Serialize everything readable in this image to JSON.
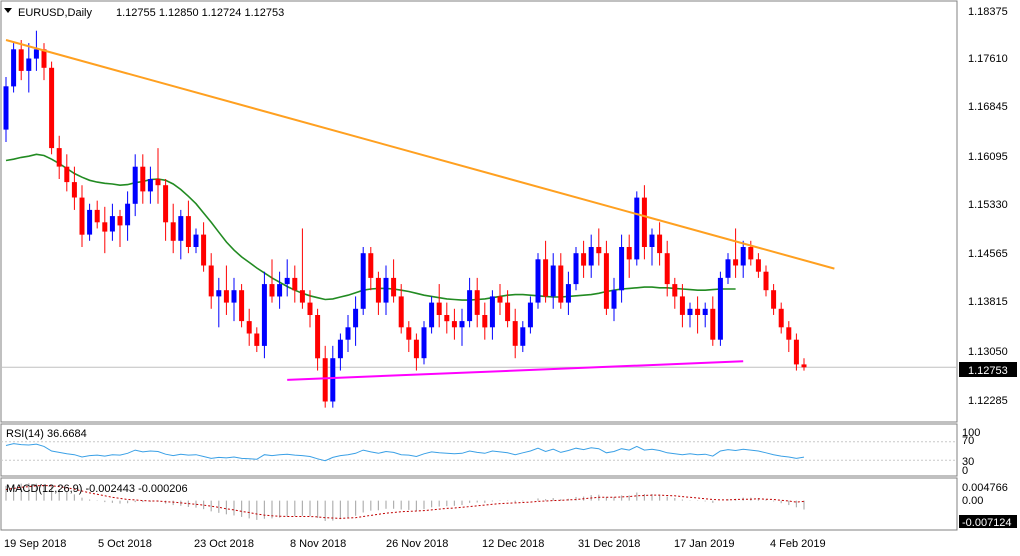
{
  "header": {
    "arrow_icon": "triangle-down-icon",
    "symbol": "EURUSD,Daily",
    "ohlc": "1.12755 1.12850 1.12724 1.12753"
  },
  "price_axis": {
    "ticks": [
      "1.18375",
      "1.17610",
      "1.16845",
      "1.16095",
      "1.15330",
      "1.14565",
      "1.13815",
      "1.13050",
      "1.12285"
    ],
    "last_price_label": "1.12753"
  },
  "rsi": {
    "label": "RSI(14) 36.6684",
    "ticks": [
      "100",
      "70",
      "30",
      "0"
    ]
  },
  "macd": {
    "label": "MACD(12,26,9) -0.002443 -0.000206",
    "ticks": [
      "0.004766",
      "0.00",
      "-0.007124"
    ]
  },
  "date_axis": [
    "19 Sep 2018",
    "5 Oct 2018",
    "23 Oct 2018",
    "8 Nov 2018",
    "26 Nov 2018",
    "12 Dec 2018",
    "31 Dec 2018",
    "17 Jan 2019",
    "4 Feb 2019"
  ],
  "colors": {
    "bull": "#0000ff",
    "bear": "#ff0000",
    "ma": "#228b22",
    "trend_down": "#ffa020",
    "trend_up": "#ff00ff",
    "rsi": "#3aa0e6",
    "macd": "#b0b0b0",
    "signal": "#c00000",
    "frame": "#808080"
  },
  "chart_data": {
    "type": "candlestick",
    "symbol": "EURUSD",
    "timeframe": "Daily",
    "last_ohlc": {
      "open": 1.12755,
      "high": 1.1285,
      "low": 1.12724,
      "close": 1.12753
    },
    "y_range": [
      1.119,
      1.186
    ],
    "candles": [
      [
        1.166,
        1.1745,
        1.164,
        1.173
      ],
      [
        1.173,
        1.18,
        1.172,
        1.179
      ],
      [
        1.179,
        1.1805,
        1.174,
        1.1755
      ],
      [
        1.1755,
        1.18,
        1.172,
        1.1775
      ],
      [
        1.1775,
        1.182,
        1.1755,
        1.179
      ],
      [
        1.179,
        1.18,
        1.174,
        1.176
      ],
      [
        1.176,
        1.177,
        1.162,
        1.163
      ],
      [
        1.163,
        1.165,
        1.158,
        1.16
      ],
      [
        1.16,
        1.162,
        1.156,
        1.1575
      ],
      [
        1.1575,
        1.16,
        1.153,
        1.155
      ],
      [
        1.155,
        1.157,
        1.147,
        1.149
      ],
      [
        1.149,
        1.154,
        1.148,
        1.153
      ],
      [
        1.153,
        1.1545,
        1.15,
        1.151
      ],
      [
        1.151,
        1.1535,
        1.146,
        1.1495
      ],
      [
        1.1495,
        1.154,
        1.148,
        1.152
      ],
      [
        1.152,
        1.153,
        1.147,
        1.1505
      ],
      [
        1.1505,
        1.156,
        1.148,
        1.154
      ],
      [
        1.154,
        1.162,
        1.152,
        1.16
      ],
      [
        1.16,
        1.162,
        1.154,
        1.156
      ],
      [
        1.156,
        1.16,
        1.154,
        1.158
      ],
      [
        1.158,
        1.163,
        1.154,
        1.157
      ],
      [
        1.157,
        1.158,
        1.148,
        1.151
      ],
      [
        1.151,
        1.154,
        1.146,
        1.148
      ],
      [
        1.148,
        1.153,
        1.145,
        1.152
      ],
      [
        1.152,
        1.1545,
        1.146,
        1.147
      ],
      [
        1.147,
        1.15,
        1.146,
        1.149
      ],
      [
        1.149,
        1.151,
        1.143,
        1.144
      ],
      [
        1.144,
        1.146,
        1.137,
        1.139
      ],
      [
        1.139,
        1.142,
        1.134,
        1.14
      ],
      [
        1.14,
        1.144,
        1.136,
        1.138
      ],
      [
        1.138,
        1.142,
        1.135,
        1.14
      ],
      [
        1.14,
        1.141,
        1.134,
        1.135
      ],
      [
        1.135,
        1.137,
        1.131,
        1.133
      ],
      [
        1.133,
        1.134,
        1.13,
        1.131
      ],
      [
        1.131,
        1.143,
        1.129,
        1.141
      ],
      [
        1.141,
        1.145,
        1.138,
        1.139
      ],
      [
        1.139,
        1.143,
        1.137,
        1.141
      ],
      [
        1.141,
        1.145,
        1.139,
        1.142
      ],
      [
        1.142,
        1.144,
        1.138,
        1.14
      ],
      [
        1.14,
        1.15,
        1.137,
        1.138
      ],
      [
        1.138,
        1.14,
        1.134,
        1.136
      ],
      [
        1.136,
        1.137,
        1.127,
        1.129
      ],
      [
        1.129,
        1.131,
        1.121,
        1.122
      ],
      [
        1.122,
        1.131,
        1.121,
        1.129
      ],
      [
        1.129,
        1.133,
        1.127,
        1.132
      ],
      [
        1.132,
        1.136,
        1.13,
        1.134
      ],
      [
        1.134,
        1.139,
        1.131,
        1.137
      ],
      [
        1.137,
        1.147,
        1.136,
        1.146
      ],
      [
        1.146,
        1.147,
        1.14,
        1.142
      ],
      [
        1.142,
        1.143,
        1.136,
        1.138
      ],
      [
        1.138,
        1.144,
        1.136,
        1.142
      ],
      [
        1.142,
        1.145,
        1.138,
        1.139
      ],
      [
        1.139,
        1.141,
        1.133,
        1.134
      ],
      [
        1.134,
        1.135,
        1.13,
        1.132
      ],
      [
        1.132,
        1.133,
        1.127,
        1.129
      ],
      [
        1.129,
        1.135,
        1.128,
        1.134
      ],
      [
        1.134,
        1.139,
        1.133,
        1.138
      ],
      [
        1.138,
        1.141,
        1.134,
        1.136
      ],
      [
        1.136,
        1.138,
        1.133,
        1.135
      ],
      [
        1.135,
        1.137,
        1.132,
        1.134
      ],
      [
        1.134,
        1.137,
        1.131,
        1.135
      ],
      [
        1.135,
        1.142,
        1.134,
        1.14
      ],
      [
        1.14,
        1.142,
        1.134,
        1.136
      ],
      [
        1.136,
        1.138,
        1.132,
        1.134
      ],
      [
        1.134,
        1.14,
        1.132,
        1.139
      ],
      [
        1.139,
        1.141,
        1.136,
        1.138
      ],
      [
        1.138,
        1.14,
        1.134,
        1.135
      ],
      [
        1.135,
        1.137,
        1.129,
        1.131
      ],
      [
        1.131,
        1.135,
        1.13,
        1.134
      ],
      [
        1.134,
        1.139,
        1.133,
        1.138
      ],
      [
        1.138,
        1.146,
        1.137,
        1.145
      ],
      [
        1.145,
        1.148,
        1.138,
        1.139
      ],
      [
        1.139,
        1.146,
        1.137,
        1.144
      ],
      [
        1.144,
        1.146,
        1.137,
        1.138
      ],
      [
        1.138,
        1.143,
        1.136,
        1.141
      ],
      [
        1.141,
        1.147,
        1.14,
        1.146
      ],
      [
        1.146,
        1.148,
        1.142,
        1.144
      ],
      [
        1.144,
        1.149,
        1.142,
        1.147
      ],
      [
        1.147,
        1.15,
        1.144,
        1.146
      ],
      [
        1.146,
        1.148,
        1.136,
        1.137
      ],
      [
        1.137,
        1.142,
        1.135,
        1.14
      ],
      [
        1.14,
        1.149,
        1.138,
        1.147
      ],
      [
        1.147,
        1.149,
        1.142,
        1.145
      ],
      [
        1.145,
        1.156,
        1.144,
        1.155
      ],
      [
        1.155,
        1.157,
        1.145,
        1.147
      ],
      [
        1.147,
        1.15,
        1.144,
        1.149
      ],
      [
        1.149,
        1.151,
        1.144,
        1.146
      ],
      [
        1.146,
        1.148,
        1.139,
        1.141
      ],
      [
        1.141,
        1.142,
        1.137,
        1.139
      ],
      [
        1.139,
        1.141,
        1.134,
        1.136
      ],
      [
        1.136,
        1.138,
        1.134,
        1.137
      ],
      [
        1.137,
        1.139,
        1.133,
        1.136
      ],
      [
        1.136,
        1.138,
        1.134,
        1.137
      ],
      [
        1.137,
        1.139,
        1.131,
        1.132
      ],
      [
        1.132,
        1.143,
        1.131,
        1.142
      ],
      [
        1.142,
        1.146,
        1.141,
        1.145
      ],
      [
        1.145,
        1.15,
        1.142,
        1.144
      ],
      [
        1.144,
        1.148,
        1.142,
        1.147
      ],
      [
        1.147,
        1.148,
        1.144,
        1.145
      ],
      [
        1.145,
        1.146,
        1.142,
        1.143
      ],
      [
        1.143,
        1.144,
        1.139,
        1.14
      ],
      [
        1.14,
        1.141,
        1.136,
        1.137
      ],
      [
        1.137,
        1.138,
        1.133,
        1.134
      ],
      [
        1.134,
        1.135,
        1.13,
        1.132
      ],
      [
        1.132,
        1.133,
        1.127,
        1.128
      ],
      [
        1.128,
        1.129,
        1.127,
        1.12753
      ]
    ],
    "moving_average": [
      1.161,
      1.1612,
      1.1615,
      1.1617,
      1.162,
      1.1618,
      1.1612,
      1.1605,
      1.1597,
      1.1589,
      1.1583,
      1.1578,
      1.1575,
      1.1573,
      1.1572,
      1.157,
      1.1571,
      1.1574,
      1.1576,
      1.1579,
      1.158,
      1.1578,
      1.1572,
      1.1563,
      1.1552,
      1.154,
      1.1525,
      1.151,
      1.1494,
      1.1478,
      1.1465,
      1.1454,
      1.1445,
      1.1436,
      1.1428,
      1.142,
      1.1413,
      1.1406,
      1.14,
      1.1395,
      1.1391,
      1.1388,
      1.1385,
      1.1386,
      1.1389,
      1.1392,
      1.1396,
      1.14,
      1.1402,
      1.1403,
      1.1403,
      1.1402,
      1.14,
      1.1398,
      1.1395,
      1.1392,
      1.139,
      1.1388,
      1.1386,
      1.1385,
      1.1384,
      1.1384,
      1.1385,
      1.1386,
      1.1388,
      1.139,
      1.1392,
      1.1393,
      1.1393,
      1.1392,
      1.1391,
      1.139,
      1.1389,
      1.1389,
      1.139,
      1.1391,
      1.1392,
      1.1393,
      1.1395,
      1.1398,
      1.14,
      1.1402,
      1.1403,
      1.1404,
      1.1405,
      1.1405,
      1.1404,
      1.1404,
      1.1403,
      1.1402,
      1.1401,
      1.14,
      1.14,
      1.1401,
      1.1402,
      1.1402,
      1.1402
    ],
    "trendlines": [
      {
        "from": [
          0,
          1.1805
        ],
        "to": [
          109,
          1.1435
        ],
        "color": "orange"
      },
      {
        "from": [
          37,
          1.1255
        ],
        "to": [
          97,
          1.1285
        ],
        "color": "magenta"
      }
    ],
    "rsi_values": [
      62,
      66,
      64,
      63,
      65,
      60,
      50,
      47,
      44,
      42,
      37,
      40,
      41,
      39,
      42,
      41,
      45,
      52,
      48,
      50,
      49,
      43,
      40,
      43,
      41,
      42,
      38,
      34,
      36,
      35,
      37,
      34,
      33,
      32,
      42,
      40,
      42,
      43,
      41,
      40,
      38,
      33,
      29,
      36,
      40,
      42,
      45,
      52,
      48,
      45,
      49,
      47,
      42,
      41,
      38,
      44,
      48,
      46,
      45,
      44,
      45,
      50,
      47,
      45,
      50,
      48,
      46,
      42,
      46,
      50,
      56,
      49,
      54,
      47,
      51,
      56,
      53,
      57,
      55,
      46,
      49,
      55,
      52,
      60,
      52,
      54,
      51,
      46,
      44,
      42,
      44,
      42,
      43,
      39,
      50,
      53,
      51,
      54,
      52,
      50,
      46,
      42,
      39,
      37,
      34,
      36.67
    ],
    "macd_hist": [
      0.004,
      0.0044,
      0.0046,
      0.0047,
      0.0046,
      0.0044,
      0.0038,
      0.0031,
      0.0024,
      0.0017,
      0.0008,
      0.0003,
      -0.0001,
      -0.0004,
      -0.0006,
      -0.0008,
      -0.0007,
      -0.0004,
      -0.0004,
      -0.0003,
      -0.0003,
      -0.0008,
      -0.0012,
      -0.0014,
      -0.0017,
      -0.0019,
      -0.0023,
      -0.0029,
      -0.0033,
      -0.0037,
      -0.004,
      -0.0044,
      -0.0048,
      -0.0052,
      -0.0049,
      -0.0048,
      -0.0046,
      -0.0043,
      -0.0042,
      -0.0041,
      -0.0042,
      -0.0047,
      -0.0055,
      -0.0054,
      -0.005,
      -0.0046,
      -0.0041,
      -0.0032,
      -0.0027,
      -0.0026,
      -0.0022,
      -0.0022,
      -0.0024,
      -0.0025,
      -0.0027,
      -0.0023,
      -0.0018,
      -0.0016,
      -0.0015,
      -0.0014,
      -0.0012,
      -0.0006,
      -0.0005,
      -0.0006,
      -0.0002,
      -0.0001,
      -0.0001,
      -0.0004,
      -0.0002,
      0.0,
      0.0006,
      0.0004,
      0.0007,
      0.0004,
      0.0005,
      0.001,
      0.0011,
      0.0015,
      0.0016,
      0.001,
      0.001,
      0.0014,
      0.0014,
      0.0022,
      0.0018,
      0.0018,
      0.0016,
      0.0011,
      0.0007,
      0.0003,
      0.0001,
      -0.0001,
      -0.0002,
      -0.0006,
      0.0,
      0.0004,
      0.0005,
      0.0008,
      0.0008,
      0.0007,
      0.0003,
      -0.0002,
      -0.0007,
      -0.0012,
      -0.0018,
      -0.0024
    ],
    "macd_signal": [
      0.003,
      0.0033,
      0.0036,
      0.0038,
      0.004,
      0.0041,
      0.004,
      0.0038,
      0.0035,
      0.0031,
      0.0026,
      0.0021,
      0.0017,
      0.0013,
      0.0009,
      0.0006,
      0.0003,
      0.0002,
      0.0,
      -0.0001,
      -0.0001,
      -0.0003,
      -0.0004,
      -0.0006,
      -0.0008,
      -0.001,
      -0.0012,
      -0.0015,
      -0.0018,
      -0.0022,
      -0.0025,
      -0.0029,
      -0.0032,
      -0.0036,
      -0.0039,
      -0.0041,
      -0.0042,
      -0.0043,
      -0.0043,
      -0.0043,
      -0.0043,
      -0.0044,
      -0.0046,
      -0.0047,
      -0.0048,
      -0.0047,
      -0.0046,
      -0.0043,
      -0.004,
      -0.0037,
      -0.0034,
      -0.0032,
      -0.003,
      -0.0029,
      -0.0028,
      -0.0027,
      -0.0025,
      -0.0023,
      -0.0021,
      -0.002,
      -0.0018,
      -0.0016,
      -0.0014,
      -0.0012,
      -0.001,
      -0.0008,
      -0.0007,
      -0.0006,
      -0.0005,
      -0.0004,
      -0.0002,
      -0.0001,
      0.0,
      0.0001,
      0.0002,
      0.0003,
      0.0005,
      0.0007,
      0.0009,
      0.0009,
      0.0009,
      0.001,
      0.0011,
      0.0013,
      0.0014,
      0.0015,
      0.0015,
      0.0014,
      0.0013,
      0.0011,
      0.0009,
      0.0007,
      0.0005,
      0.0003,
      0.0002,
      0.0002,
      0.0003,
      0.0004,
      0.0004,
      0.0005,
      0.0004,
      0.0003,
      0.0001,
      -0.0001,
      -0.0004,
      -0.0002
    ]
  }
}
